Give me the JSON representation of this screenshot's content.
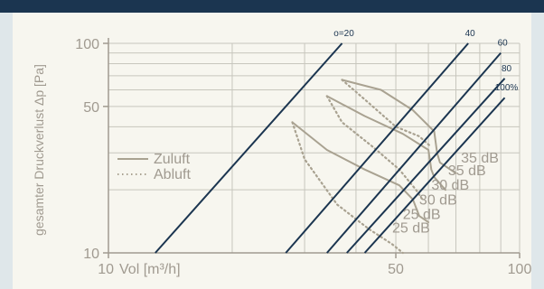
{
  "chart_data": {
    "type": "line",
    "xscale": "log",
    "yscale": "log",
    "xlim": [
      10,
      100
    ],
    "ylim": [
      10,
      100
    ],
    "grid": true,
    "xlabel": "Vol [m³/h]",
    "ylabel": "gesamter Druckverlust Δp [Pa]",
    "x_ticks": [
      {
        "value": 10,
        "label": "10"
      },
      {
        "value": 50,
        "label": "50"
      },
      {
        "value": 100,
        "label": "100"
      }
    ],
    "y_ticks": [
      {
        "value": 10,
        "label": "10"
      },
      {
        "value": 50,
        "label": "50"
      },
      {
        "value": 100,
        "label": "100"
      }
    ],
    "legend": {
      "position": "left",
      "entries": [
        {
          "label": "Zuluft",
          "style": "solid"
        },
        {
          "label": "Abluft",
          "style": "dotted"
        }
      ]
    },
    "opening_lines": [
      {
        "label": "o=20",
        "points": [
          [
            13,
            10
          ],
          [
            37,
            100
          ]
        ]
      },
      {
        "label": "40",
        "points": [
          [
            27,
            10
          ],
          [
            75,
            100
          ]
        ]
      },
      {
        "label": "60",
        "points": [
          [
            34,
            10
          ],
          [
            90,
            90
          ]
        ]
      },
      {
        "label": "80",
        "points": [
          [
            38,
            10
          ],
          [
            92,
            68
          ]
        ]
      },
      {
        "label": "100%",
        "points": [
          [
            42,
            10
          ],
          [
            92,
            55
          ]
        ]
      }
    ],
    "series": [
      {
        "name": "Zuluft",
        "style": "solid",
        "points": [
          [
            37,
            67
          ],
          [
            46,
            60
          ],
          [
            55,
            48
          ],
          [
            62,
            38
          ],
          [
            63,
            30
          ],
          [
            64,
            27
          ],
          [
            70,
            24
          ]
        ]
      },
      {
        "name": "Zuluft",
        "style": "solid",
        "points": [
          [
            34,
            56
          ],
          [
            42,
            45
          ],
          [
            52,
            37
          ],
          [
            60,
            31
          ],
          [
            61,
            25
          ],
          [
            62,
            23
          ],
          [
            66,
            20
          ]
        ]
      },
      {
        "name": "Zuluft",
        "style": "solid",
        "points": [
          [
            28,
            42
          ],
          [
            34,
            31
          ],
          [
            42,
            25
          ],
          [
            51,
            21
          ],
          [
            55,
            18
          ],
          [
            57,
            15
          ],
          [
            60,
            14
          ]
        ]
      },
      {
        "name": "Abluft",
        "style": "dotted",
        "points": [
          [
            37,
            67
          ],
          [
            42,
            54
          ],
          [
            50,
            40
          ],
          [
            57,
            36
          ],
          [
            61,
            32
          ]
        ]
      },
      {
        "name": "Abluft",
        "style": "dotted",
        "points": [
          [
            34,
            56
          ],
          [
            37,
            42
          ],
          [
            44,
            32
          ],
          [
            51,
            25
          ],
          [
            56,
            20
          ],
          [
            58,
            18
          ]
        ]
      },
      {
        "name": "Abluft",
        "style": "dotted",
        "points": [
          [
            28,
            42
          ],
          [
            30,
            28
          ],
          [
            36,
            17
          ],
          [
            43,
            13
          ],
          [
            49,
            11
          ],
          [
            52,
            10
          ]
        ]
      }
    ],
    "annotations": [
      {
        "text": "35 dB",
        "x": 72,
        "y": 27
      },
      {
        "text": "35 dB",
        "x": 67,
        "y": 23.5
      },
      {
        "text": "30 dB",
        "x": 61,
        "y": 20
      },
      {
        "text": "30 dB",
        "x": 57,
        "y": 17
      },
      {
        "text": "25 dB",
        "x": 52,
        "y": 14.5
      },
      {
        "text": "25 dB",
        "x": 49,
        "y": 12.5
      }
    ],
    "colors": {
      "background": "#f7f6ef",
      "frame_outer": "#dfe7ea",
      "top_bar": "#1b3550",
      "opening_line": "#1b3550",
      "curve": "#a9a291",
      "grid": "#c7c6bd",
      "text": "#a09a90",
      "label_dark": "#1b3550"
    }
  }
}
